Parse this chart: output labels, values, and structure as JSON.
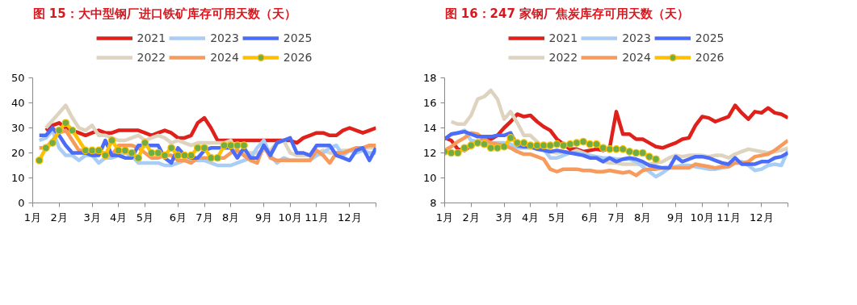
{
  "chart_data": [
    {
      "type": "line",
      "title": "图 15：大中型钢厂进口铁矿库存可用天数（天）",
      "legend": "top",
      "grid": false,
      "marker": "none",
      "line_style": "solid",
      "ylim": [
        0,
        50
      ],
      "yticks": [
        0,
        10,
        20,
        30,
        40,
        50
      ],
      "categories": [
        "1月",
        null,
        null,
        null,
        "2月",
        null,
        null,
        null,
        null,
        "3月",
        null,
        null,
        null,
        "4月",
        null,
        null,
        null,
        "5月",
        null,
        null,
        null,
        null,
        "6月",
        null,
        null,
        null,
        "7月",
        null,
        null,
        null,
        "8月",
        null,
        null,
        null,
        null,
        "9月",
        null,
        null,
        null,
        "10月",
        null,
        null,
        null,
        "11月",
        null,
        null,
        null,
        null,
        "12月",
        null,
        null,
        null,
        null
      ],
      "series": [
        {
          "name": "2021",
          "color": "#e0201b",
          "values": [
            null,
            null,
            29,
            31,
            32,
            30,
            29,
            28,
            27,
            28,
            29,
            28,
            28,
            29,
            29,
            29,
            29,
            28,
            27,
            28,
            29,
            28,
            26,
            26,
            27,
            32,
            34,
            30,
            25,
            25,
            25,
            25,
            25,
            25,
            25,
            25,
            25,
            25,
            25,
            25,
            24,
            26,
            27,
            28,
            28,
            27,
            27,
            29,
            30,
            29,
            28,
            29,
            30
          ]
        },
        {
          "name": "2022",
          "color": "#ddd3bf",
          "values": [
            null,
            null,
            30,
            33,
            36,
            39,
            34,
            30,
            29,
            31,
            27,
            27,
            26,
            25,
            25,
            26,
            27,
            25,
            26,
            27,
            26,
            24,
            25,
            24,
            23,
            24,
            24,
            24,
            24,
            24,
            25,
            20,
            20,
            20,
            20,
            21,
            21,
            24,
            25,
            20,
            19,
            19,
            19,
            20,
            21,
            20,
            20,
            21,
            21,
            22,
            22,
            22,
            22
          ]
        },
        {
          "name": "2023",
          "color": "#a9cdf5",
          "values": [
            null,
            25,
            26,
            29,
            22,
            19,
            19,
            17,
            19,
            19,
            16,
            18,
            18,
            19,
            20,
            19,
            16,
            16,
            16,
            16,
            15,
            15,
            16,
            17,
            17,
            17,
            17,
            16,
            15,
            15,
            15,
            16,
            17,
            18,
            22,
            25,
            19,
            16,
            18,
            17,
            17,
            17,
            17,
            19,
            20,
            22,
            23,
            19,
            21,
            20,
            21,
            20,
            20
          ]
        },
        {
          "name": "2024",
          "color": "#f79a5b",
          "values": [
            null,
            22,
            22,
            25,
            28,
            29,
            25,
            21,
            21,
            21,
            20,
            20,
            19,
            23,
            23,
            23,
            22,
            20,
            18,
            18,
            19,
            19,
            17,
            17,
            16,
            18,
            18,
            18,
            18,
            18,
            20,
            21,
            19,
            17,
            16,
            23,
            18,
            17,
            17,
            17,
            17,
            17,
            17,
            21,
            19,
            16,
            20,
            20,
            21,
            22,
            22,
            23,
            23
          ]
        },
        {
          "name": "2025",
          "color": "#4a6cf7",
          "values": [
            null,
            27,
            27,
            30,
            27,
            23,
            20,
            20,
            20,
            19,
            19,
            25,
            19,
            19,
            18,
            18,
            23,
            23,
            23,
            23,
            18,
            16,
            22,
            19,
            18,
            18,
            21,
            22,
            22,
            22,
            22,
            18,
            22,
            18,
            18,
            23,
            19,
            24,
            25,
            26,
            20,
            20,
            19,
            23,
            23,
            23,
            19,
            18,
            17,
            21,
            22,
            17,
            22
          ]
        },
        {
          "name": "2026",
          "color": "#ffc000",
          "marker": "circle",
          "colors": [
            null,
            "#70ad47",
            "#70ad47",
            "#70ad47",
            "#70ad47",
            "#70ad47",
            "#70ad47",
            null,
            "#70ad47",
            "#70ad47",
            "#70ad47",
            "#70ad47",
            "#70ad47",
            "#70ad47",
            "#70ad47",
            "#70ad47",
            "#70ad47",
            "#70ad47",
            "#70ad47",
            "#70ad47",
            "#70ad47",
            "#70ad47",
            "#70ad47",
            "#70ad47",
            "#70ad47",
            "#70ad47",
            "#70ad47",
            "#70ad47",
            "#70ad47",
            "#70ad47",
            "#70ad47",
            "#70ad47",
            "#70ad47",
            null,
            null,
            null,
            null,
            null,
            null,
            null,
            null,
            null,
            null,
            null,
            null,
            null,
            null,
            null,
            null,
            null,
            null,
            null,
            null
          ],
          "values": [
            null,
            17,
            22,
            24,
            29,
            32,
            29,
            null,
            21,
            21,
            21,
            19,
            25,
            21,
            21,
            20,
            18,
            24,
            20,
            20,
            19,
            22,
            19,
            19,
            19,
            22,
            22,
            18,
            18,
            23,
            23,
            23,
            23,
            null,
            null,
            null,
            null,
            null,
            null,
            null,
            null,
            null,
            null,
            null,
            null,
            null,
            null,
            null,
            null,
            null,
            null,
            null,
            null
          ]
        }
      ]
    },
    {
      "type": "line",
      "title": "图 16：247 家钢厂焦炭库存可用天数（天）",
      "legend": "top",
      "grid": false,
      "marker": "none",
      "line_style": "solid",
      "ylim": [
        8,
        18
      ],
      "yticks": [
        8,
        10,
        12,
        14,
        16,
        18
      ],
      "categories": [
        "1月",
        null,
        null,
        null,
        "2月",
        null,
        null,
        null,
        null,
        "3月",
        null,
        null,
        null,
        "4月",
        null,
        null,
        null,
        "5月",
        null,
        null,
        null,
        null,
        "6月",
        null,
        null,
        null,
        "7月",
        null,
        null,
        null,
        "8月",
        null,
        null,
        null,
        null,
        "9月",
        null,
        null,
        null,
        "10月",
        null,
        null,
        null,
        "11月",
        null,
        null,
        null,
        null,
        "12月",
        null,
        null,
        null,
        null
      ],
      "series": [
        {
          "name": "2021",
          "color": "#e0201b",
          "values": [
            13.2,
            13.0,
            12.3,
            12.2,
            12.6,
            12.9,
            13.0,
            13.1,
            13.4,
            14.0,
            14.5,
            15.1,
            14.9,
            15.0,
            14.5,
            14.1,
            13.8,
            13.1,
            12.7,
            12.3,
            12.3,
            12.1,
            12.2,
            12.3,
            12.2,
            12.4,
            15.3,
            13.5,
            13.5,
            13.1,
            13.1,
            12.8,
            12.5,
            12.4,
            12.6,
            12.8,
            13.1,
            13.2,
            14.2,
            14.9,
            14.8,
            14.5,
            14.7,
            14.9,
            15.8,
            15.2,
            14.7,
            15.3,
            15.2,
            15.6,
            15.2,
            15.1,
            14.8
          ]
        },
        {
          "name": "2022",
          "color": "#ddd3bf",
          "values": [
            null,
            14.5,
            14.3,
            14.3,
            15.0,
            16.3,
            16.5,
            17.0,
            16.3,
            14.7,
            15.3,
            14.4,
            13.4,
            13.4,
            12.9,
            12.4,
            12.1,
            12.0,
            12.1,
            12.0,
            12.2,
            12.0,
            11.8,
            11.6,
            11.3,
            11.2,
            11.2,
            11.1,
            11.1,
            11.1,
            11.1,
            11.1,
            11.2,
            11.3,
            11.6,
            11.8,
            11.7,
            11.8,
            11.8,
            11.8,
            11.7,
            11.8,
            11.8,
            11.6,
            11.9,
            12.1,
            12.3,
            12.2,
            12.1,
            12.0,
            12.1,
            12.2,
            12.4
          ]
        },
        {
          "name": "2023",
          "color": "#a9cdf5",
          "values": [
            13.1,
            13.5,
            13.6,
            13.8,
            13.0,
            12.9,
            12.9,
            12.8,
            12.8,
            12.8,
            12.7,
            12.4,
            12.4,
            12.4,
            12.4,
            12.3,
            11.6,
            11.6,
            11.8,
            12.0,
            12.0,
            11.9,
            11.8,
            11.7,
            11.6,
            11.6,
            11.5,
            11.5,
            11.5,
            11.3,
            10.9,
            10.5,
            10.1,
            10.4,
            10.8,
            10.9,
            11.0,
            11.0,
            10.9,
            10.8,
            10.7,
            10.7,
            10.8,
            10.9,
            11.2,
            11.3,
            11.0,
            10.6,
            10.7,
            11.0,
            11.1,
            11.0,
            12.2
          ]
        },
        {
          "name": "2024",
          "color": "#f79a5b",
          "values": [
            12.2,
            12.5,
            12.9,
            13.2,
            13.6,
            13.5,
            13.1,
            12.8,
            12.7,
            12.6,
            12.4,
            12.1,
            11.9,
            11.9,
            11.7,
            11.5,
            10.7,
            10.5,
            10.7,
            10.7,
            10.7,
            10.6,
            10.6,
            10.5,
            10.5,
            10.6,
            10.5,
            10.4,
            10.5,
            10.2,
            10.6,
            10.7,
            10.7,
            10.8,
            10.8,
            10.8,
            10.8,
            10.8,
            11.1,
            11.0,
            10.9,
            10.8,
            10.9,
            10.9,
            11.2,
            11.2,
            11.3,
            11.7,
            11.8,
            11.9,
            12.2,
            12.6,
            13.0
          ]
        },
        {
          "name": "2025",
          "color": "#4a6cf7",
          "values": [
            13.1,
            13.5,
            13.6,
            13.7,
            13.5,
            13.3,
            13.3,
            13.3,
            13.4,
            13.4,
            13.6,
            12.6,
            12.5,
            12.5,
            12.3,
            12.2,
            12.1,
            12.2,
            12.1,
            12.0,
            11.9,
            11.8,
            11.6,
            11.6,
            11.3,
            11.6,
            11.3,
            11.5,
            11.6,
            11.5,
            11.3,
            11.0,
            10.9,
            10.8,
            10.8,
            11.7,
            11.3,
            11.5,
            11.7,
            11.7,
            11.6,
            11.4,
            11.2,
            11.1,
            11.6,
            11.1,
            11.1,
            11.1,
            11.3,
            11.3,
            11.6,
            11.7,
            12.0
          ]
        },
        {
          "name": "2026",
          "color": "#ffc000",
          "marker": "circle",
          "colors": [
            "#70ad47",
            "#70ad47",
            "#70ad47",
            "#70ad47",
            "#70ad47",
            "#70ad47",
            "#70ad47",
            "#70ad47",
            "#70ad47",
            "#70ad47",
            "#70ad47",
            "#70ad47",
            "#70ad47",
            "#70ad47",
            "#70ad47",
            "#70ad47",
            "#70ad47",
            "#70ad47",
            "#70ad47",
            "#70ad47",
            "#70ad47",
            "#70ad47",
            "#70ad47",
            "#70ad47",
            "#70ad47",
            "#70ad47",
            "#70ad47",
            "#70ad47",
            "#70ad47",
            "#70ad47",
            "#70ad47",
            "#70ad47",
            "#70ad47",
            null,
            null,
            null,
            null,
            null,
            null,
            null,
            null,
            null,
            null,
            null,
            null,
            null,
            null,
            null,
            null,
            null,
            null,
            null,
            null
          ],
          "values": [
            12.1,
            12.0,
            12.0,
            12.4,
            12.6,
            12.8,
            12.7,
            12.4,
            12.4,
            12.5,
            13.2,
            12.8,
            12.8,
            12.6,
            12.6,
            12.6,
            12.6,
            12.7,
            12.6,
            12.7,
            12.8,
            12.9,
            12.7,
            12.7,
            12.4,
            12.3,
            12.3,
            12.3,
            12.1,
            12.0,
            12.0,
            11.7,
            11.5,
            null,
            null,
            null,
            null,
            null,
            null,
            null,
            null,
            null,
            null,
            null,
            null,
            null,
            null,
            null,
            null,
            null,
            null,
            null,
            null
          ]
        }
      ]
    }
  ]
}
